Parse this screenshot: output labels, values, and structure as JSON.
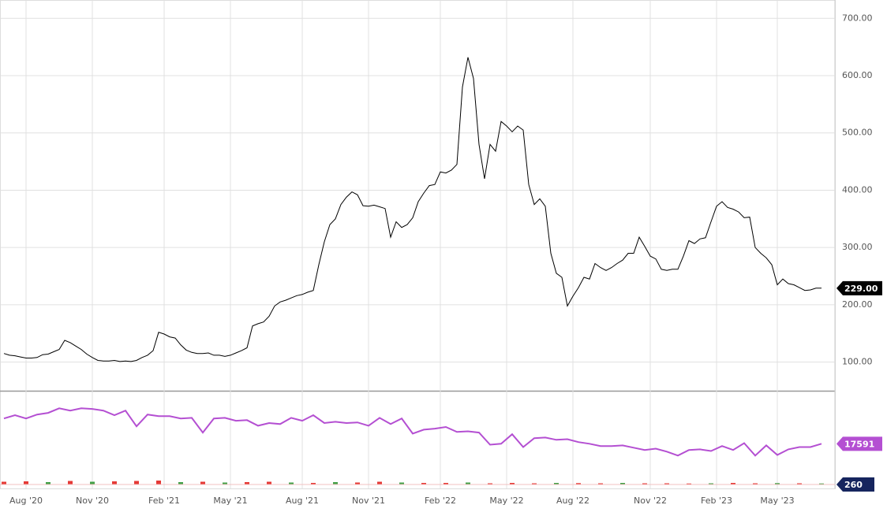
{
  "chart_data": [
    {
      "type": "line",
      "color": "#000000",
      "grid": true,
      "categories": [
        null,
        null,
        null,
        null,
        "Aug '20",
        null,
        null,
        null,
        null,
        null,
        null,
        null,
        null,
        null,
        null,
        null,
        "Nov '20",
        null,
        null,
        null,
        null,
        null,
        null,
        null,
        null,
        null,
        null,
        null,
        null,
        "Feb '21",
        null,
        null,
        null,
        null,
        null,
        null,
        null,
        null,
        null,
        null,
        null,
        "May '21",
        null,
        null,
        null,
        null,
        null,
        null,
        null,
        null,
        null,
        null,
        null,
        null,
        "Aug '21",
        null,
        null,
        null,
        null,
        null,
        null,
        null,
        null,
        null,
        null,
        null,
        "Nov '21",
        null,
        null,
        null,
        null,
        null,
        null,
        null,
        null,
        null,
        null,
        null,
        null,
        "Feb '22",
        null,
        null,
        null,
        null,
        null,
        null,
        null,
        null,
        null,
        null,
        null,
        "May '22",
        null,
        null,
        null,
        null,
        null,
        null,
        null,
        null,
        null,
        null,
        null,
        "Aug '22",
        null,
        null,
        null,
        null,
        null,
        null,
        null,
        null,
        null,
        null,
        null,
        null,
        null,
        "Nov '22",
        null,
        null,
        null,
        null,
        null,
        null,
        null,
        null,
        null,
        null,
        null,
        "Feb '23",
        null,
        null,
        null,
        null,
        null,
        null,
        null,
        null,
        null,
        null,
        "May '23",
        null,
        null,
        null,
        null,
        null,
        null,
        null,
        null
      ],
      "values": [
        115,
        112,
        111,
        109,
        107,
        107,
        108,
        113,
        114,
        118,
        122,
        138,
        134,
        128,
        122,
        114,
        108,
        103,
        102,
        102,
        103,
        101,
        102,
        101,
        103,
        108,
        112,
        120,
        152,
        149,
        144,
        142,
        130,
        121,
        117,
        115,
        115,
        116,
        112,
        112,
        110,
        112,
        116,
        120,
        125,
        163,
        167,
        170,
        180,
        198,
        205,
        208,
        212,
        216,
        218,
        222,
        225,
        270,
        310,
        340,
        350,
        375,
        388,
        397,
        392,
        373,
        372,
        374,
        371,
        368,
        318,
        345,
        335,
        340,
        352,
        380,
        395,
        408,
        410,
        432,
        430,
        435,
        445,
        580,
        632,
        595,
        480,
        420,
        480,
        468,
        520,
        512,
        502,
        512,
        505,
        410,
        375,
        385,
        372,
        290,
        255,
        248,
        198,
        215,
        230,
        248,
        245,
        272,
        265,
        260,
        265,
        272,
        278,
        290,
        290,
        318,
        302,
        285,
        280,
        262,
        260,
        262,
        262,
        285,
        312,
        307,
        315,
        317,
        345,
        372,
        380,
        370,
        367,
        362,
        352,
        353,
        300,
        290,
        282,
        270,
        235,
        245,
        237,
        235,
        230,
        225,
        226,
        229,
        229
      ],
      "value_label": "229.00",
      "ylim": [
        50,
        732
      ],
      "yticks": [
        {
          "value": 100,
          "label": "100.00"
        },
        {
          "value": 200,
          "label": "200.00"
        },
        {
          "value": 300,
          "label": "300.00"
        },
        {
          "value": 400,
          "label": "400.00"
        },
        {
          "value": 500,
          "label": "500.00"
        },
        {
          "value": 600,
          "label": "600.00"
        },
        {
          "value": 700,
          "label": "700.00"
        }
      ]
    },
    {
      "type": "line",
      "color": "#b44fd2",
      "values": [
        25300,
        26300,
        25300,
        26500,
        27000,
        28400,
        27700,
        28400,
        28200,
        27700,
        26300,
        27700,
        22900,
        26500,
        26000,
        26000,
        25300,
        25500,
        21000,
        25300,
        25500,
        24600,
        24800,
        23100,
        23900,
        23600,
        25500,
        24600,
        26300,
        23900,
        24300,
        23900,
        24100,
        23100,
        25500,
        23600,
        25300,
        20700,
        21900,
        22200,
        22700,
        21200,
        21400,
        21000,
        17300,
        17600,
        20500,
        16600,
        19300,
        19500,
        18800,
        19000,
        18100,
        17600,
        16900,
        16900,
        17100,
        16400,
        15700,
        16100,
        15200,
        14000,
        15700,
        15900,
        15400,
        16900,
        15700,
        17800,
        14000,
        17100,
        14200,
        15900,
        16600,
        16600,
        17591
      ],
      "value_label": "17591",
      "ylim": [
        4000,
        33500
      ]
    },
    {
      "type": "bar",
      "values": [
        700,
        800,
        600,
        900,
        700,
        800,
        900,
        1000,
        600,
        700,
        500,
        600,
        700,
        500,
        400,
        600,
        500,
        700,
        500,
        400,
        400,
        500,
        300,
        400,
        300,
        400,
        350,
        300,
        400,
        300,
        300,
        250,
        300,
        400,
        300,
        350,
        300,
        260
      ],
      "colors": [
        "#e53935",
        "#e53935",
        "#43a047",
        "#e53935",
        "#43a047",
        "#e53935",
        "#e53935",
        "#e53935",
        "#43a047",
        "#e53935",
        "#43a047",
        "#e53935",
        "#e53935",
        "#43a047",
        "#e53935",
        "#43a047",
        "#e53935",
        "#e53935",
        "#43a047",
        "#e53935",
        "#e53935",
        "#43a047",
        "#e53935",
        "#e53935",
        "#e53935",
        "#43a047",
        "#e53935",
        "#e53935",
        "#43a047",
        "#e53935",
        "#e53935",
        "#e53935",
        "#43a047",
        "#e53935",
        "#e53935",
        "#43a047",
        "#e53935",
        "#43a047"
      ],
      "value_label": "260",
      "ylim": [
        0,
        6000
      ]
    }
  ]
}
